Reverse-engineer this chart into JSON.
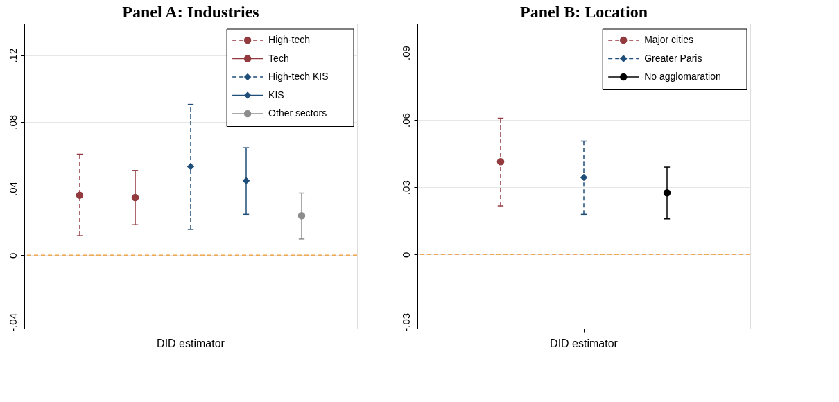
{
  "chart_data": [
    {
      "type": "scatter",
      "title": "Panel A: Industries",
      "categories": [
        "DID estimator"
      ],
      "series": [
        {
          "name": "High-tech",
          "color": "#933a3f",
          "values": [
            0.036
          ],
          "errors": [
            [
              0.0117,
              0.0606
            ]
          ],
          "marker": "circle",
          "line_style": "dashed"
        },
        {
          "name": "Tech",
          "color": "#933a3f",
          "values": [
            0.0346
          ],
          "errors": [
            [
              0.0183,
              0.0509
            ]
          ],
          "marker": "circle",
          "line_style": "solid"
        },
        {
          "name": "High-tech KIS",
          "color": "#1f4e79",
          "values": [
            0.0532
          ],
          "errors": [
            [
              0.0155,
              0.0905
            ]
          ],
          "marker": "diamond",
          "line_style": "dashed"
        },
        {
          "name": "KIS",
          "color": "#1f4e79",
          "values": [
            0.0447
          ],
          "errors": [
            [
              0.0245,
              0.0645
            ]
          ],
          "marker": "diamond",
          "line_style": "solid"
        },
        {
          "name": "Other sectors",
          "color": "#8c8c8c",
          "values": [
            0.0237
          ],
          "errors": [
            [
              0.0097,
              0.0373
            ]
          ],
          "marker": "circle",
          "line_style": "solid"
        }
      ],
      "ylim": [
        -0.044,
        0.139
      ],
      "yticks": [
        {
          "value": -0.04,
          "label": "-.04"
        },
        {
          "value": 0,
          "label": "0"
        },
        {
          "value": 0.04,
          "label": ".04"
        },
        {
          "value": 0.08,
          "label": ".08"
        },
        {
          "value": 0.12,
          "label": ".12"
        }
      ],
      "ref_lines": [
        {
          "axis": "y",
          "value": 0,
          "color": "#f0962e",
          "line_style": "dashed"
        }
      ],
      "grid": "y",
      "legend": "top right"
    },
    {
      "type": "scatter",
      "title": "Panel B: Location",
      "categories": [
        "DID estimator"
      ],
      "series": [
        {
          "name": "Major cities",
          "color": "#933a3f",
          "values": [
            0.0414
          ],
          "errors": [
            [
              0.0217,
              0.0608
            ]
          ],
          "marker": "circle",
          "line_style": "dashed"
        },
        {
          "name": "Greater Paris",
          "color": "#1f4e79",
          "values": [
            0.0344
          ],
          "errors": [
            [
              0.0179,
              0.0506
            ]
          ],
          "marker": "diamond",
          "line_style": "dashed"
        },
        {
          "name": "No agglomaration",
          "color": "#000000",
          "values": [
            0.0275
          ],
          "errors": [
            [
              0.0159,
              0.039
            ]
          ],
          "marker": "circle",
          "line_style": "solid"
        }
      ],
      "ylim": [
        -0.033,
        0.103
      ],
      "yticks": [
        {
          "value": -0.03,
          "label": "-.03"
        },
        {
          "value": 0,
          "label": "0"
        },
        {
          "value": 0.03,
          "label": ".03"
        },
        {
          "value": 0.06,
          "label": ".06"
        },
        {
          "value": 0.09,
          "label": ".09"
        }
      ],
      "ref_lines": [
        {
          "axis": "y",
          "value": 0,
          "color": "#f0962e",
          "line_style": "dashed"
        }
      ],
      "grid": "y",
      "legend": "top right"
    }
  ]
}
